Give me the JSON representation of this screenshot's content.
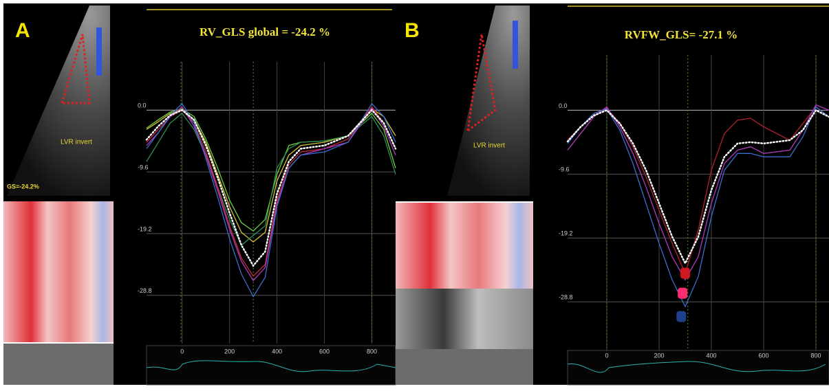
{
  "panels": [
    {
      "label": "A",
      "image_caption": "LVR invert",
      "global_label": "GS=-24.2%"
    },
    {
      "label": "B",
      "image_caption": "LVR invert"
    }
  ],
  "chart_data": [
    {
      "type": "line",
      "title": "RV_GLS global = -24.2 %",
      "x": [
        -150,
        -100,
        -50,
        0,
        50,
        100,
        150,
        200,
        250,
        300,
        350,
        400,
        450,
        500,
        600,
        700,
        800,
        850,
        900
      ],
      "series": [
        {
          "color": "#6fcf3f",
          "values": [
            -2.8,
            -1.5,
            -0.3,
            0.2,
            -1,
            -4.5,
            -9,
            -14,
            -17.5,
            -18.8,
            -17,
            -10,
            -5.5,
            -5,
            -4.8,
            -4,
            -0.5,
            -3,
            -9
          ]
        },
        {
          "color": "#d6c63a",
          "values": [
            -3,
            -1.8,
            -0.5,
            0,
            -1.5,
            -5,
            -10,
            -15,
            -19,
            -20.5,
            -19,
            -11,
            -7,
            -5.5,
            -5,
            -4,
            0.2,
            -1,
            -4
          ]
        },
        {
          "color": "#2f8f55",
          "values": [
            -8,
            -5,
            -2,
            -0.5,
            -3,
            -7,
            -12,
            -17,
            -21,
            -19.5,
            -18,
            -9,
            -6,
            -5,
            -4.8,
            -4,
            -1,
            -4,
            -10
          ]
        },
        {
          "color": "#c8283c",
          "values": [
            -5,
            -3,
            -1,
            0,
            -2,
            -6.5,
            -12,
            -18,
            -23,
            -25.8,
            -24,
            -14,
            -8.5,
            -6.5,
            -6,
            -4.5,
            0.5,
            -2,
            -6
          ]
        },
        {
          "color": "#b03cc0",
          "values": [
            -5.5,
            -3.5,
            -1,
            0.5,
            -2.5,
            -7,
            -12.5,
            -18.5,
            -23.5,
            -26.5,
            -24.5,
            -14.5,
            -9,
            -7,
            -6,
            -5,
            0.3,
            -2.5,
            -7
          ]
        },
        {
          "color": "#3a6fd0",
          "values": [
            -6,
            -3.5,
            -0.8,
            1,
            -2,
            -7.5,
            -13.5,
            -20,
            -25.5,
            -29,
            -26,
            -15,
            -9,
            -7,
            -6.5,
            -5,
            1,
            -1,
            -5
          ]
        },
        {
          "color": "#ffffff",
          "dotted": true,
          "values": [
            -4.6,
            -2.5,
            -0.8,
            0,
            -1.5,
            -5.5,
            -10.5,
            -16,
            -21,
            -24.2,
            -22,
            -13,
            -8,
            -6,
            -5.5,
            -4,
            0,
            -2,
            -6
          ]
        }
      ],
      "events": [
        -5,
        300,
        800
      ],
      "xlim": [
        -150,
        900
      ],
      "xticks": [
        0,
        200,
        400,
        600,
        800
      ],
      "ylim": [
        -36.3,
        7.5
      ],
      "yticks": [
        {
          "value": 0,
          "label": "0.0"
        },
        -9.6,
        -19.2,
        -28.8
      ],
      "grid": true
    },
    {
      "type": "line",
      "title": "RVFW_GLS= -27.1 %",
      "x": [
        -150,
        -100,
        -50,
        0,
        50,
        100,
        150,
        200,
        250,
        300,
        350,
        400,
        450,
        500,
        550,
        600,
        700,
        750,
        800,
        850
      ],
      "series": [
        {
          "color": "#b3222e",
          "values": [
            -4.5,
            -2.5,
            -0.5,
            0.3,
            -2,
            -5.5,
            -10,
            -15,
            -20,
            -24.5,
            -18,
            -9,
            -3.5,
            -1.5,
            -1.2,
            -2.5,
            -4.5,
            -2,
            0.5,
            -1
          ]
        },
        {
          "color": "#b03cc0",
          "values": [
            -6,
            -3.5,
            -1,
            0.5,
            -2.5,
            -6.5,
            -11.5,
            -17,
            -22,
            -25.5,
            -22,
            -14,
            -8,
            -6,
            -5.5,
            -6.5,
            -6,
            -3,
            0.8,
            0
          ]
        },
        {
          "color": "#3a6fd0",
          "values": [
            -5,
            -2.5,
            -0.5,
            0.2,
            -3,
            -8,
            -14,
            -20,
            -25.5,
            -29.5,
            -25,
            -16,
            -9,
            -6.5,
            -6.5,
            -7,
            -7,
            -4,
            0.5,
            -1
          ]
        },
        {
          "color": "#ffffff",
          "dotted": true,
          "values": [
            -4.7,
            -2.5,
            -0.8,
            0,
            -2,
            -5,
            -9,
            -14,
            -19,
            -23,
            -19,
            -12,
            -7,
            -5,
            -4.8,
            -5,
            -4.5,
            -3,
            0,
            -1
          ]
        }
      ],
      "markers": [
        {
          "color": "#d01820",
          "x": 300,
          "value": -24.5
        },
        {
          "color": "#ff2d70",
          "x": 290,
          "value": -27.5
        },
        {
          "color": "#1e3f8a",
          "x": 285,
          "value": -31
        }
      ],
      "events": [
        0,
        310,
        800
      ],
      "xlim": [
        -150,
        850
      ],
      "xticks": [
        0,
        200,
        400,
        600,
        800
      ],
      "ylim": [
        -36.1,
        8.3
      ],
      "yticks": [
        {
          "value": 0,
          "label": "0.0"
        },
        -9.6,
        -19.2,
        -28.8
      ],
      "grid": true
    }
  ]
}
